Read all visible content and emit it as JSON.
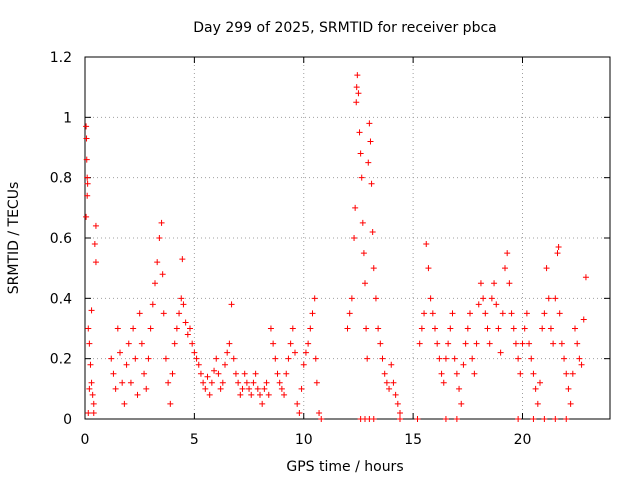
{
  "chart_data": {
    "type": "scatter",
    "title": "Day 299 of 2025, SRMTID for receiver pbca",
    "xlabel": "GPS time / hours",
    "ylabel": "SRMTID / TECUs",
    "xlim": [
      0,
      24
    ],
    "ylim": [
      0,
      1.2
    ],
    "xticks": [
      0,
      5,
      10,
      15,
      20
    ],
    "xtick_labels": [
      "0",
      "5",
      "10",
      "15",
      "20"
    ],
    "yticks": [
      0,
      0.2,
      0.4,
      0.6,
      0.8,
      1.0,
      1.2
    ],
    "ytick_labels": [
      "0",
      "0.2",
      "0.4",
      "0.6",
      "0.8",
      "1",
      "1.2"
    ],
    "grid": true,
    "marker": "+",
    "series": [
      {
        "name": "SRMTID",
        "color": "#ff0000",
        "points": [
          [
            0.05,
            0.97
          ],
          [
            0.07,
            0.93
          ],
          [
            0.08,
            0.86
          ],
          [
            0.1,
            0.8
          ],
          [
            0.12,
            0.78
          ],
          [
            0.1,
            0.74
          ],
          [
            0.05,
            0.67
          ],
          [
            0.15,
            0.3
          ],
          [
            0.2,
            0.25
          ],
          [
            0.25,
            0.18
          ],
          [
            0.3,
            0.12
          ],
          [
            0.35,
            0.08
          ],
          [
            0.4,
            0.05
          ],
          [
            0.45,
            0.58
          ],
          [
            0.5,
            0.52
          ],
          [
            0.5,
            0.64
          ],
          [
            0.3,
            0.36
          ],
          [
            0.2,
            0.1
          ],
          [
            0.15,
            0.02
          ],
          [
            0.4,
            0.02
          ],
          [
            1.2,
            0.2
          ],
          [
            1.3,
            0.15
          ],
          [
            1.4,
            0.1
          ],
          [
            1.5,
            0.3
          ],
          [
            1.6,
            0.22
          ],
          [
            1.7,
            0.12
          ],
          [
            1.8,
            0.05
          ],
          [
            1.9,
            0.18
          ],
          [
            2.0,
            0.25
          ],
          [
            2.1,
            0.12
          ],
          [
            2.2,
            0.3
          ],
          [
            2.3,
            0.2
          ],
          [
            2.4,
            0.08
          ],
          [
            2.5,
            0.35
          ],
          [
            2.6,
            0.25
          ],
          [
            2.7,
            0.15
          ],
          [
            2.8,
            0.1
          ],
          [
            2.9,
            0.2
          ],
          [
            3.0,
            0.3
          ],
          [
            3.1,
            0.38
          ],
          [
            3.2,
            0.45
          ],
          [
            3.3,
            0.52
          ],
          [
            3.4,
            0.6
          ],
          [
            3.5,
            0.65
          ],
          [
            3.55,
            0.48
          ],
          [
            3.6,
            0.35
          ],
          [
            3.7,
            0.2
          ],
          [
            3.8,
            0.12
          ],
          [
            3.9,
            0.05
          ],
          [
            4.0,
            0.15
          ],
          [
            4.1,
            0.25
          ],
          [
            4.2,
            0.3
          ],
          [
            4.3,
            0.35
          ],
          [
            4.4,
            0.4
          ],
          [
            4.45,
            0.53
          ],
          [
            4.5,
            0.38
          ],
          [
            4.6,
            0.32
          ],
          [
            4.7,
            0.28
          ],
          [
            4.8,
            0.3
          ],
          [
            4.9,
            0.25
          ],
          [
            5.0,
            0.22
          ],
          [
            5.1,
            0.2
          ],
          [
            5.2,
            0.18
          ],
          [
            5.3,
            0.15
          ],
          [
            5.4,
            0.12
          ],
          [
            5.5,
            0.1
          ],
          [
            5.6,
            0.14
          ],
          [
            5.7,
            0.08
          ],
          [
            5.8,
            0.12
          ],
          [
            5.9,
            0.16
          ],
          [
            6.0,
            0.2
          ],
          [
            6.1,
            0.15
          ],
          [
            6.2,
            0.1
          ],
          [
            6.3,
            0.12
          ],
          [
            6.4,
            0.18
          ],
          [
            6.5,
            0.22
          ],
          [
            6.6,
            0.25
          ],
          [
            6.7,
            0.38
          ],
          [
            6.8,
            0.2
          ],
          [
            6.9,
            0.15
          ],
          [
            7.0,
            0.12
          ],
          [
            7.1,
            0.08
          ],
          [
            7.2,
            0.1
          ],
          [
            7.3,
            0.15
          ],
          [
            7.4,
            0.12
          ],
          [
            7.5,
            0.1
          ],
          [
            7.6,
            0.08
          ],
          [
            7.7,
            0.12
          ],
          [
            7.8,
            0.15
          ],
          [
            7.9,
            0.1
          ],
          [
            8.0,
            0.08
          ],
          [
            8.1,
            0.05
          ],
          [
            8.2,
            0.1
          ],
          [
            8.3,
            0.12
          ],
          [
            8.4,
            0.08
          ],
          [
            8.5,
            0.3
          ],
          [
            8.6,
            0.25
          ],
          [
            8.7,
            0.2
          ],
          [
            8.8,
            0.15
          ],
          [
            8.9,
            0.12
          ],
          [
            9.0,
            0.1
          ],
          [
            9.1,
            0.08
          ],
          [
            9.2,
            0.15
          ],
          [
            9.3,
            0.2
          ],
          [
            9.4,
            0.25
          ],
          [
            9.5,
            0.3
          ],
          [
            9.6,
            0.22
          ],
          [
            9.7,
            0.05
          ],
          [
            9.8,
            0.02
          ],
          [
            9.9,
            0.1
          ],
          [
            10.0,
            0.18
          ],
          [
            10.1,
            0.22
          ],
          [
            10.2,
            0.25
          ],
          [
            10.3,
            0.3
          ],
          [
            10.4,
            0.35
          ],
          [
            10.5,
            0.4
          ],
          [
            10.55,
            0.2
          ],
          [
            10.6,
            0.12
          ],
          [
            10.7,
            0.02
          ],
          [
            10.8,
            0.0
          ],
          [
            12.0,
            0.3
          ],
          [
            12.1,
            0.35
          ],
          [
            12.2,
            0.4
          ],
          [
            12.3,
            0.6
          ],
          [
            12.35,
            0.7
          ],
          [
            12.4,
            1.05
          ],
          [
            12.42,
            1.1
          ],
          [
            12.45,
            1.14
          ],
          [
            12.5,
            1.08
          ],
          [
            12.55,
            0.95
          ],
          [
            12.6,
            0.88
          ],
          [
            12.65,
            0.8
          ],
          [
            12.7,
            0.65
          ],
          [
            12.75,
            0.55
          ],
          [
            12.8,
            0.45
          ],
          [
            12.85,
            0.3
          ],
          [
            12.9,
            0.2
          ],
          [
            12.95,
            0.85
          ],
          [
            13.0,
            0.98
          ],
          [
            13.05,
            0.92
          ],
          [
            13.1,
            0.78
          ],
          [
            13.15,
            0.62
          ],
          [
            13.2,
            0.5
          ],
          [
            13.3,
            0.4
          ],
          [
            13.4,
            0.3
          ],
          [
            13.5,
            0.25
          ],
          [
            13.6,
            0.2
          ],
          [
            13.7,
            0.15
          ],
          [
            13.8,
            0.12
          ],
          [
            13.9,
            0.1
          ],
          [
            14.0,
            0.18
          ],
          [
            14.1,
            0.12
          ],
          [
            14.2,
            0.08
          ],
          [
            14.3,
            0.05
          ],
          [
            14.4,
            0.02
          ],
          [
            12.6,
            0.0
          ],
          [
            12.8,
            0.0
          ],
          [
            13.0,
            0.0
          ],
          [
            13.2,
            0.0
          ],
          [
            14.4,
            0.0
          ],
          [
            15.3,
            0.25
          ],
          [
            15.4,
            0.3
          ],
          [
            15.5,
            0.35
          ],
          [
            15.6,
            0.58
          ],
          [
            15.7,
            0.5
          ],
          [
            15.8,
            0.4
          ],
          [
            15.9,
            0.35
          ],
          [
            16.0,
            0.3
          ],
          [
            16.1,
            0.25
          ],
          [
            16.2,
            0.2
          ],
          [
            16.3,
            0.15
          ],
          [
            16.4,
            0.12
          ],
          [
            16.5,
            0.2
          ],
          [
            16.6,
            0.25
          ],
          [
            16.7,
            0.3
          ],
          [
            16.8,
            0.35
          ],
          [
            16.9,
            0.2
          ],
          [
            17.0,
            0.15
          ],
          [
            17.1,
            0.1
          ],
          [
            17.2,
            0.05
          ],
          [
            17.3,
            0.18
          ],
          [
            17.4,
            0.25
          ],
          [
            17.5,
            0.3
          ],
          [
            17.6,
            0.35
          ],
          [
            17.7,
            0.2
          ],
          [
            17.8,
            0.15
          ],
          [
            17.9,
            0.25
          ],
          [
            18.0,
            0.38
          ],
          [
            18.1,
            0.45
          ],
          [
            18.2,
            0.4
          ],
          [
            18.3,
            0.35
          ],
          [
            18.4,
            0.3
          ],
          [
            18.5,
            0.25
          ],
          [
            18.6,
            0.4
          ],
          [
            18.7,
            0.45
          ],
          [
            18.8,
            0.38
          ],
          [
            18.9,
            0.3
          ],
          [
            19.0,
            0.22
          ],
          [
            19.1,
            0.35
          ],
          [
            19.2,
            0.5
          ],
          [
            19.3,
            0.55
          ],
          [
            19.4,
            0.45
          ],
          [
            19.5,
            0.35
          ],
          [
            19.6,
            0.3
          ],
          [
            19.7,
            0.25
          ],
          [
            19.8,
            0.2
          ],
          [
            19.9,
            0.15
          ],
          [
            20.0,
            0.25
          ],
          [
            20.1,
            0.3
          ],
          [
            20.2,
            0.35
          ],
          [
            20.3,
            0.25
          ],
          [
            20.4,
            0.2
          ],
          [
            20.5,
            0.15
          ],
          [
            20.6,
            0.1
          ],
          [
            20.7,
            0.05
          ],
          [
            20.8,
            0.12
          ],
          [
            20.9,
            0.3
          ],
          [
            21.0,
            0.35
          ],
          [
            21.1,
            0.5
          ],
          [
            21.2,
            0.4
          ],
          [
            21.3,
            0.3
          ],
          [
            21.4,
            0.25
          ],
          [
            21.5,
            0.4
          ],
          [
            21.6,
            0.55
          ],
          [
            21.65,
            0.57
          ],
          [
            21.7,
            0.35
          ],
          [
            21.8,
            0.25
          ],
          [
            21.9,
            0.2
          ],
          [
            22.0,
            0.15
          ],
          [
            22.1,
            0.1
          ],
          [
            22.2,
            0.05
          ],
          [
            22.3,
            0.15
          ],
          [
            22.4,
            0.3
          ],
          [
            22.5,
            0.25
          ],
          [
            22.6,
            0.2
          ],
          [
            22.7,
            0.18
          ],
          [
            22.8,
            0.33
          ],
          [
            22.9,
            0.47
          ],
          [
            15.2,
            0.0
          ],
          [
            16.5,
            0.0
          ],
          [
            17.0,
            0.0
          ],
          [
            19.8,
            0.0
          ],
          [
            20.5,
            0.0
          ],
          [
            21.0,
            0.0
          ],
          [
            21.5,
            0.0
          ],
          [
            22.0,
            0.0
          ]
        ]
      }
    ]
  }
}
